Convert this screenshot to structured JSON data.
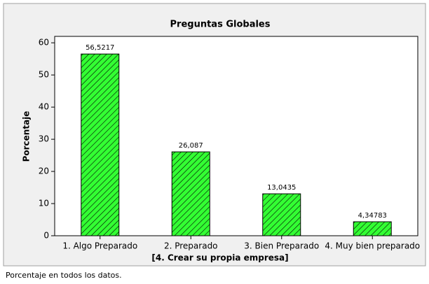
{
  "chart_data": {
    "type": "bar",
    "title": "Preguntas Globales",
    "x_label": "[4. Crear su propia empresa]",
    "y_label": "Porcentaje",
    "footnote": "Porcentaje en todos los datos.",
    "categories": [
      "1. Algo Preparado",
      "2. Preparado",
      "3. Bien Preparado",
      "4. Muy bien preparado"
    ],
    "values": [
      56.5217,
      26.087,
      13.0435,
      4.34783
    ],
    "value_labels": [
      "56,5217",
      "26,087",
      "13,0435",
      "4,34783"
    ],
    "color": "#33ff33",
    "ylim": [
      0,
      62
    ],
    "yticks": [
      0,
      10,
      20,
      30,
      40,
      50,
      60
    ],
    "grid": false
  }
}
